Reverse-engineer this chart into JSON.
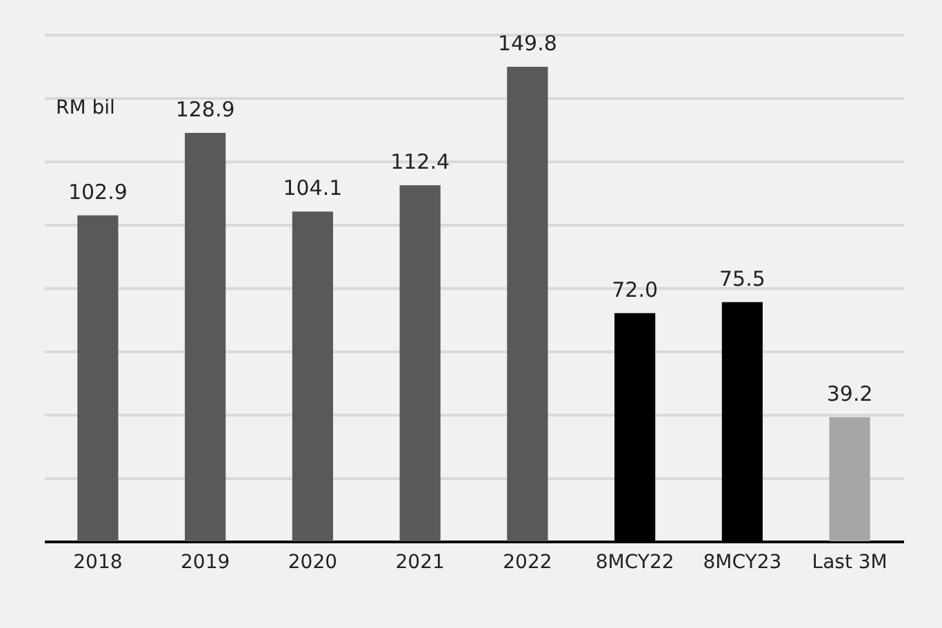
{
  "chart_data": {
    "type": "bar",
    "ylabel": "RM bil",
    "categories": [
      "2018",
      "2019",
      "2020",
      "2021",
      "2022",
      "8MCY22",
      "8MCY23",
      "Last 3M"
    ],
    "values": [
      102.9,
      128.9,
      104.1,
      112.4,
      149.8,
      72.0,
      75.5,
      39.2
    ],
    "colors": [
      "#595959",
      "#595959",
      "#595959",
      "#595959",
      "#595959",
      "#000000",
      "#000000",
      "#a6a6a6"
    ],
    "value_labels": [
      "102.9",
      "128.9",
      "104.1",
      "112.4",
      "149.8",
      "72.0",
      "75.5",
      "39.2"
    ],
    "grid": "y"
  }
}
